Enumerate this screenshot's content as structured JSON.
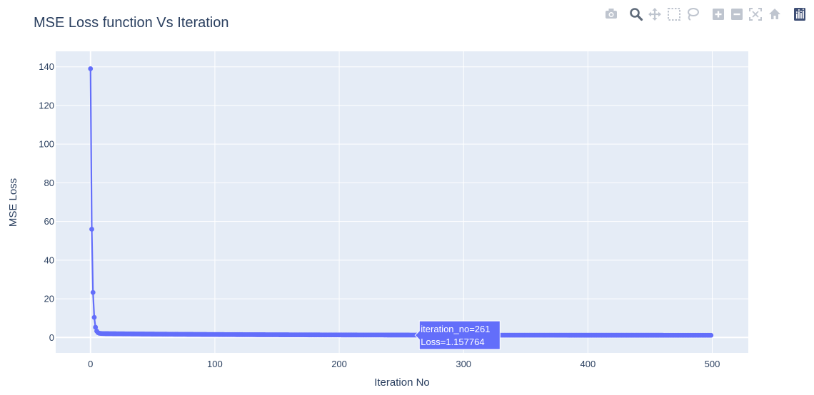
{
  "chart_data": {
    "type": "line",
    "title": "MSE Loss function Vs Iteration",
    "xlabel": "Iteration No",
    "ylabel": "MSE Loss",
    "xlim": [
      -28,
      529
    ],
    "ylim": [
      -8,
      148
    ],
    "xticks": [
      0,
      100,
      200,
      300,
      400,
      500
    ],
    "yticks": [
      0,
      20,
      40,
      60,
      80,
      100,
      120,
      140
    ],
    "grid": true,
    "series_color": "#636efa",
    "plot_bg": "#e5ecf6",
    "series": [
      {
        "x_range": [
          0,
          499
        ],
        "head": [
          139,
          56,
          23.3,
          10.4,
          5.3,
          3.3,
          2.5,
          2.2,
          2.1,
          2.05,
          2.0
        ],
        "tail_start": 2.0,
        "tail_end": 1.12,
        "tail_decay": 120
      }
    ],
    "hover": {
      "x": 261,
      "y": 1.157764,
      "lines": [
        "iteration_no=261",
        "Loss=1.157764"
      ]
    }
  },
  "toolbar": {
    "buttons": [
      {
        "name": "camera-icon",
        "glyph": "camera",
        "active": false
      },
      {
        "name": "zoom-icon",
        "glyph": "zoom",
        "active": true
      },
      {
        "name": "pan-icon",
        "glyph": "pan",
        "active": false
      },
      {
        "name": "box-select-icon",
        "glyph": "box",
        "active": false
      },
      {
        "name": "lasso-select-icon",
        "glyph": "lasso",
        "active": false
      },
      {
        "name": "zoom-in-icon",
        "glyph": "plus",
        "active": false
      },
      {
        "name": "zoom-out-icon",
        "glyph": "minus",
        "active": false
      },
      {
        "name": "autoscale-icon",
        "glyph": "autoscale",
        "active": false
      },
      {
        "name": "reset-axes-icon",
        "glyph": "home",
        "active": false
      },
      {
        "name": "plotly-logo-icon",
        "glyph": "logo",
        "active": false
      }
    ],
    "icon_color": "#bfc5cf",
    "active_color": "#5f6b7a",
    "logo_color": "#3f4f75"
  }
}
